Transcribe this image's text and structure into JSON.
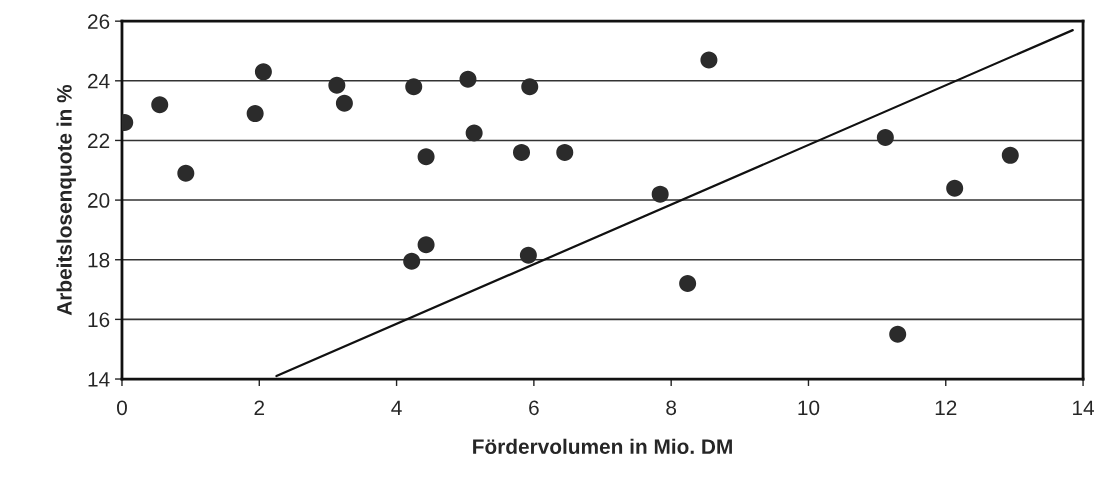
{
  "chart_data": {
    "type": "scatter",
    "xlabel": "Fördervolumen in Mio. DM",
    "ylabel": "Arbeitslosenquote in %",
    "xlim": [
      0,
      14
    ],
    "xticks": [
      0,
      2,
      4,
      6,
      8,
      10,
      12,
      14
    ],
    "ylim": [
      14,
      26
    ],
    "yticks": [
      14,
      16,
      18,
      20,
      22,
      24,
      26
    ],
    "grid": "y",
    "legend": false,
    "series": [
      {
        "marker": "circle",
        "color": "#2b2b2b",
        "x": [
          0.04,
          0.55,
          0.93,
          1.94,
          2.06,
          3.13,
          3.24,
          4.25,
          4.22,
          4.43,
          4.43,
          5.04,
          5.13,
          5.82,
          5.94,
          5.92,
          6.45,
          7.84,
          8.24,
          8.55,
          11.12,
          11.3,
          12.13,
          12.94
        ],
        "values": [
          22.6,
          23.2,
          20.9,
          22.9,
          24.3,
          23.85,
          23.25,
          23.8,
          17.95,
          21.45,
          18.5,
          24.05,
          22.25,
          21.6,
          23.8,
          18.15,
          21.6,
          20.2,
          17.2,
          24.7,
          22.1,
          15.5,
          20.4,
          21.5
        ]
      },
      {
        "type": "line",
        "marker": "none",
        "color": "#111111",
        "x": [
          2.25,
          13.85
        ],
        "values": [
          14.1,
          25.7
        ]
      }
    ]
  }
}
